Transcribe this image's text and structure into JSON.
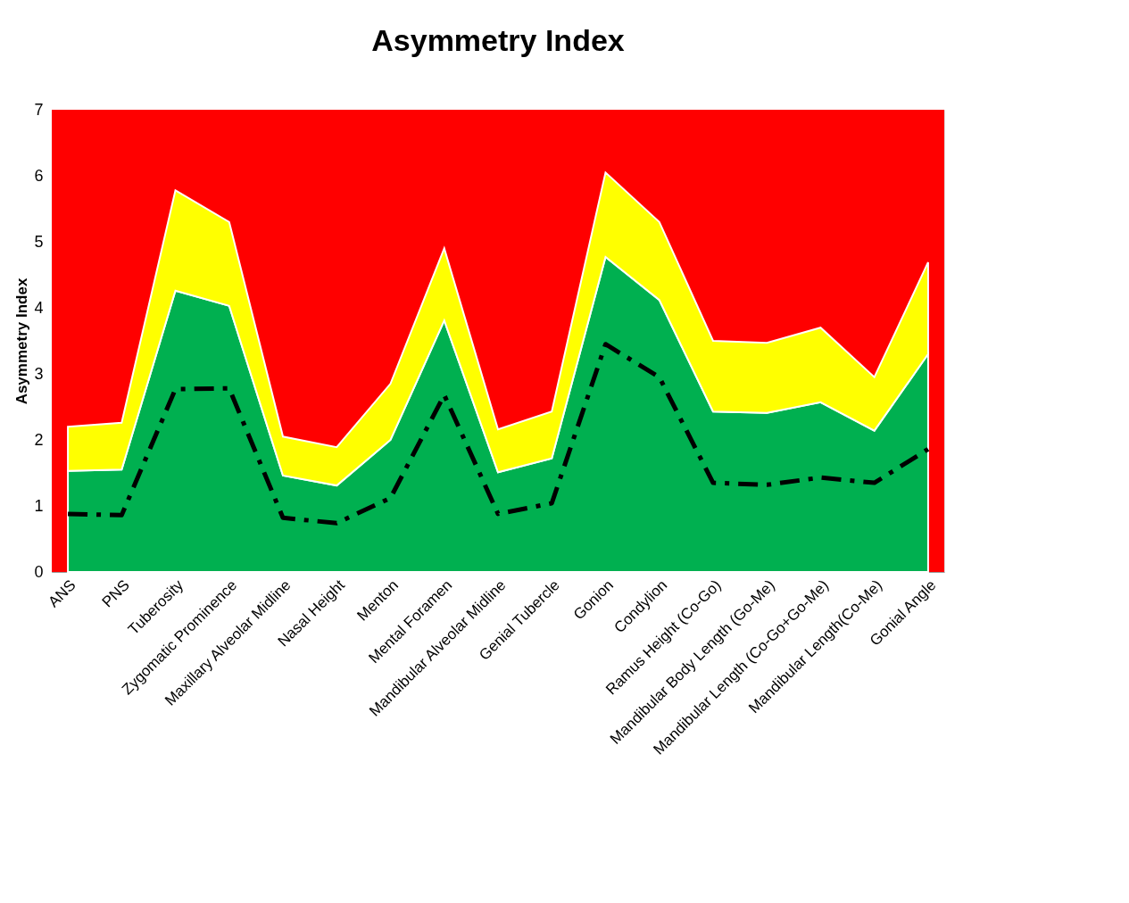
{
  "chart_data": {
    "type": "area",
    "title": "Asymmetry Index",
    "ylabel": "Asymmetry Index",
    "categories": [
      "ANS",
      "PNS",
      "Tuberosity",
      "Zygomatic Prominence",
      "Maxillary Alveolar Midline",
      "Nasal Height",
      "Menton",
      "Mental Foramen",
      "Mandibular Alveolar Midline",
      "Genial Tubercle",
      "Gonion",
      "Condylion",
      "Ramus Height (Co-Go)",
      "Mandibular Body Length (Go-Me)",
      "Mandibular Length (Co-Go+Go-Me)",
      "Mandibular Length(Co-Me)",
      "Gonial Angle"
    ],
    "stacked": true,
    "series": [
      {
        "color": "#00b050",
        "values": [
          1.53,
          1.55,
          4.26,
          4.03,
          1.46,
          1.31,
          2.0,
          3.81,
          1.51,
          1.72,
          4.77,
          4.12,
          2.43,
          2.41,
          2.57,
          2.14,
          3.3
        ]
      },
      {
        "color": "#ffff00",
        "values": [
          0.67,
          0.71,
          1.52,
          1.27,
          0.59,
          0.58,
          0.85,
          1.09,
          0.65,
          0.71,
          1.28,
          1.18,
          1.07,
          1.06,
          1.13,
          0.81,
          1.39
        ]
      },
      {
        "type": "line",
        "color": "#000000",
        "line_style": "dashed",
        "values": [
          0.88,
          0.86,
          2.77,
          2.78,
          0.82,
          0.74,
          1.12,
          2.68,
          0.88,
          1.04,
          3.45,
          2.95,
          1.35,
          1.32,
          1.43,
          1.35,
          1.86
        ]
      }
    ],
    "bands": [
      {
        "axis": "y",
        "from": 0,
        "to": 7,
        "color": "#ff0000"
      }
    ],
    "ylim": [
      0,
      7
    ],
    "yticks": [
      0,
      1,
      2,
      3,
      4,
      5,
      6,
      7
    ]
  }
}
